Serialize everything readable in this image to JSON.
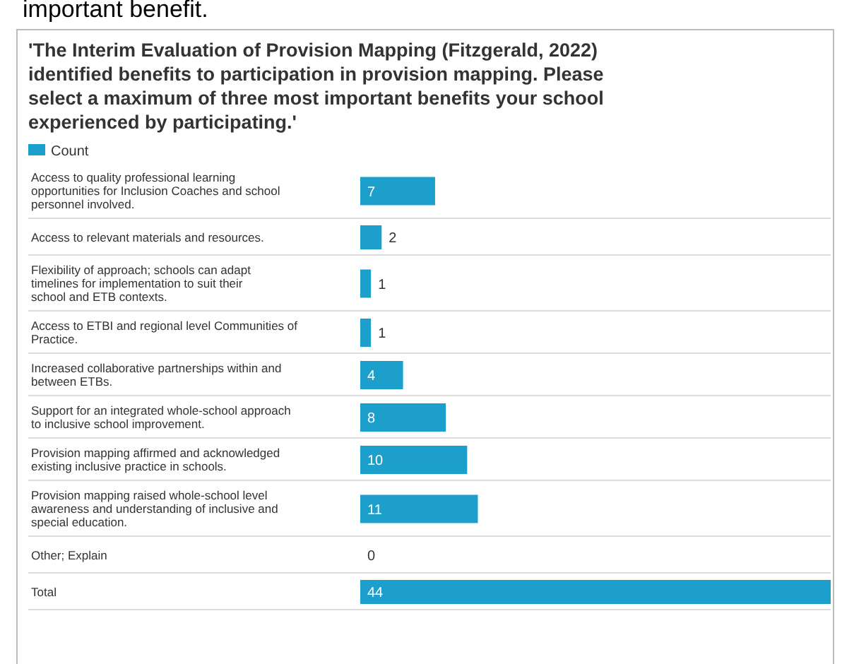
{
  "chart_data": {
    "type": "bar",
    "orientation": "horizontal",
    "title": "'The Interim Evaluation of Provision Mapping (Fitzgerald, 2022) identified benefits to participation in provision mapping. Please select a maximum of three most important benefits your school experienced by participating.'",
    "annotations": [
      "important benefit."
    ],
    "categories": [
      "Access to quality professional learning opportunities for Inclusion Coaches and school personnel involved.",
      "Access to relevant materials and resources.",
      "Flexibility of approach; schools can adapt timelines for implementation to suit their school and ETB contexts.",
      "Access to ETBI and regional level Communities of Practice.",
      "Increased collaborative partnerships within and between ETBs.",
      "Support for an integrated whole-school approach to inclusive school improvement.",
      "Provision mapping affirmed and acknowledged existing inclusive practice in schools.",
      "Provision mapping raised whole-school level awareness and understanding of inclusive and special education.",
      "Other; Explain",
      "Total"
    ],
    "series": [
      {
        "name": "Count",
        "color": "#1d9fcc",
        "values": [
          7,
          2,
          1,
          1,
          4,
          8,
          10,
          11,
          0,
          44
        ]
      }
    ],
    "data_labels": true,
    "legend": "top left"
  }
}
